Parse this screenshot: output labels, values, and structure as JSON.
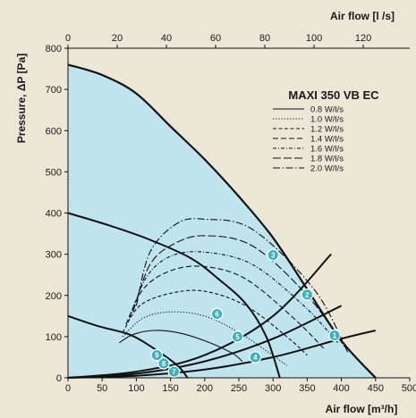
{
  "chart_data": {
    "type": "line",
    "title": "MAXI 350 VB EC",
    "xlabel": "Air flow [m³/h]",
    "x2label": "Air flow [l /s]",
    "ylabel": "Pressure, ΔP [Pa]",
    "xlim": [
      0,
      500
    ],
    "ylim": [
      0,
      800
    ],
    "x2lim": [
      0,
      138.9
    ],
    "xticks": [
      "0",
      "50",
      "100",
      "150",
      "200",
      "250",
      "300",
      "350",
      "400",
      "450",
      "500"
    ],
    "yticks": [
      "0",
      "100",
      "200",
      "300",
      "400",
      "500",
      "600",
      "700",
      "800"
    ],
    "x2ticks": [
      "0",
      "20",
      "40",
      "60",
      "80",
      "100",
      "120"
    ],
    "colors": {
      "background": "#ece6d6",
      "fill": "#bfe4ee",
      "line": "#111111",
      "marker": "#3ab0c4"
    },
    "legend": {
      "placement": "top-right",
      "entries": [
        {
          "label": "0.8 W/l/s",
          "dash": "solid"
        },
        {
          "label": "1.0 W/l/s",
          "dash": "dotted"
        },
        {
          "label": "1.2 W/l/s",
          "dash": "dash-short"
        },
        {
          "label": "1.4 W/l/s",
          "dash": "dash"
        },
        {
          "label": "1.6 W/l/s",
          "dash": "dash-dot-short"
        },
        {
          "label": "1.8 W/l/s",
          "dash": "dash-long"
        },
        {
          "label": "2.0 W/l/s",
          "dash": "dash-dot"
        }
      ]
    },
    "max_curve": [
      [
        0,
        760
      ],
      [
        50,
        735
      ],
      [
        100,
        690
      ],
      [
        150,
        610
      ],
      [
        200,
        530
      ],
      [
        250,
        440
      ],
      [
        300,
        340
      ],
      [
        350,
        215
      ],
      [
        400,
        90
      ],
      [
        450,
        0
      ]
    ],
    "fan_curves": [
      [
        [
          0,
          400
        ],
        [
          60,
          370
        ],
        [
          120,
          335
        ],
        [
          180,
          290
        ],
        [
          220,
          240
        ],
        [
          260,
          180
        ],
        [
          290,
          100
        ],
        [
          310,
          0
        ]
      ],
      [
        [
          0,
          150
        ],
        [
          45,
          125
        ],
        [
          90,
          105
        ],
        [
          125,
          72
        ],
        [
          160,
          30
        ],
        [
          175,
          0
        ]
      ]
    ],
    "system_curves": [
      [
        [
          0,
          0
        ],
        [
          100,
          15
        ],
        [
          200,
          55
        ],
        [
          300,
          150
        ],
        [
          385,
          300
        ]
      ],
      [
        [
          0,
          0
        ],
        [
          100,
          10
        ],
        [
          200,
          40
        ],
        [
          300,
          95
        ],
        [
          400,
          175
        ]
      ],
      [
        [
          0,
          0
        ],
        [
          100,
          5
        ],
        [
          200,
          20
        ],
        [
          300,
          50
        ],
        [
          400,
          95
        ],
        [
          450,
          115
        ]
      ]
    ],
    "power_series": [
      {
        "label": "0.8 W/l/s",
        "points": [
          [
            75,
            85
          ],
          [
            95,
            105
          ],
          [
            125,
            115
          ],
          [
            160,
            110
          ],
          [
            200,
            90
          ],
          [
            240,
            60
          ],
          [
            255,
            40
          ]
        ]
      },
      {
        "label": "1.0 W/l/s",
        "points": [
          [
            80,
            100
          ],
          [
            110,
            145
          ],
          [
            150,
            160
          ],
          [
            200,
            150
          ],
          [
            250,
            110
          ],
          [
            295,
            60
          ],
          [
            320,
            30
          ]
        ]
      },
      {
        "label": "1.2 W/l/s",
        "points": [
          [
            80,
            110
          ],
          [
            105,
            175
          ],
          [
            150,
            205
          ],
          [
            200,
            210
          ],
          [
            260,
            175
          ],
          [
            320,
            100
          ],
          [
            350,
            55
          ]
        ]
      },
      {
        "label": "1.4 W/l/s",
        "points": [
          [
            85,
            130
          ],
          [
            110,
            215
          ],
          [
            150,
            260
          ],
          [
            200,
            270
          ],
          [
            260,
            240
          ],
          [
            330,
            145
          ],
          [
            375,
            70
          ]
        ]
      },
      {
        "label": "1.6 W/l/s",
        "points": [
          [
            90,
            145
          ],
          [
            115,
            245
          ],
          [
            150,
            295
          ],
          [
            200,
            305
          ],
          [
            270,
            275
          ],
          [
            345,
            175
          ],
          [
            395,
            85
          ]
        ]
      },
      {
        "label": "1.8 W/l/s",
        "points": [
          [
            95,
            160
          ],
          [
            120,
            275
          ],
          [
            155,
            325
          ],
          [
            200,
            345
          ],
          [
            270,
            320
          ],
          [
            350,
            200
          ],
          [
            405,
            75
          ]
        ]
      },
      {
        "label": "2.0 W/l/s",
        "points": [
          [
            100,
            175
          ],
          [
            120,
            305
          ],
          [
            160,
            375
          ],
          [
            200,
            385
          ],
          [
            270,
            360
          ],
          [
            360,
            215
          ],
          [
            410,
            60
          ]
        ]
      }
    ],
    "markers": [
      {
        "label": "1",
        "x": 390,
        "y": 103
      },
      {
        "label": "2",
        "x": 350,
        "y": 202
      },
      {
        "label": "3",
        "x": 300,
        "y": 298
      },
      {
        "label": "4",
        "x": 274,
        "y": 50
      },
      {
        "label": "5",
        "x": 248,
        "y": 100
      },
      {
        "label": "6",
        "x": 218,
        "y": 155
      },
      {
        "label": "7",
        "x": 155,
        "y": 15
      },
      {
        "label": "8",
        "x": 140,
        "y": 35
      },
      {
        "label": "9",
        "x": 130,
        "y": 55
      }
    ]
  }
}
